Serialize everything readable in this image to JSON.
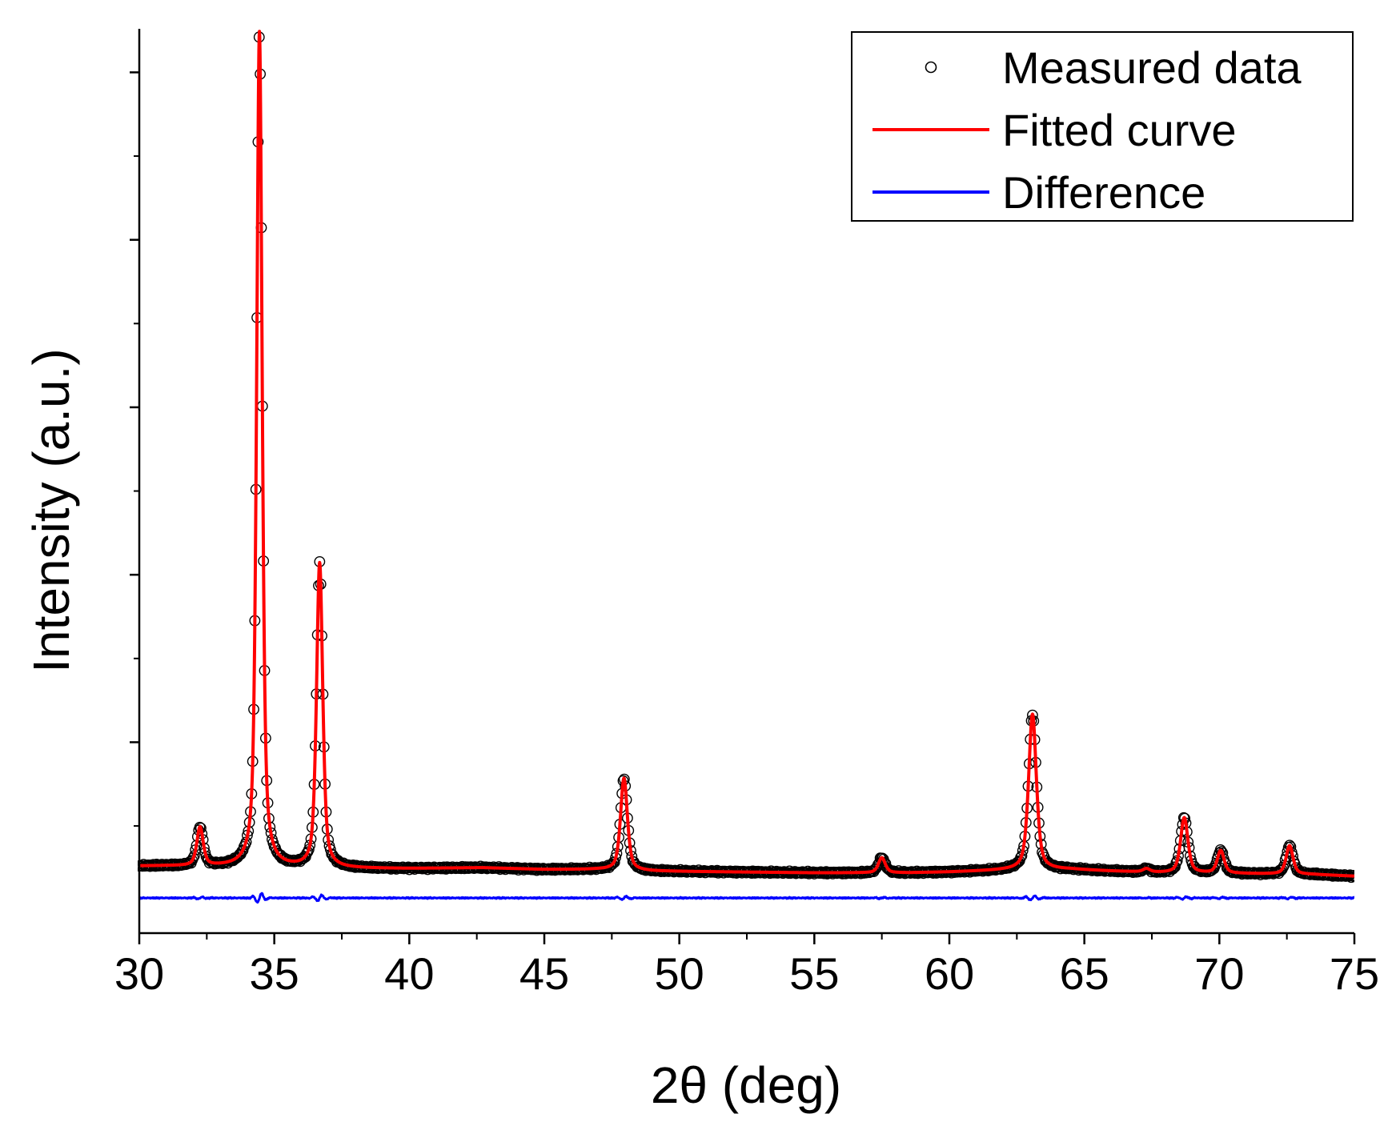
{
  "chart_data": {
    "type": "line",
    "title": "",
    "xlabel": "2θ (deg)",
    "ylabel": "Intensity (a.u.)",
    "xlim": [
      30,
      75
    ],
    "ylim": [
      -0.08,
      1.0
    ],
    "xticks": [
      30,
      35,
      40,
      45,
      50,
      55,
      60,
      65,
      70,
      75
    ],
    "x_tick_labels": [
      "30",
      "35",
      "40",
      "45",
      "50",
      "55",
      "60",
      "65",
      "70",
      "75"
    ],
    "y_tick_labels_shown": false,
    "legend_position": "top-right",
    "background_points": [
      [
        30.0,
        0.0
      ],
      [
        31.0,
        0.0
      ],
      [
        33.0,
        -0.001
      ],
      [
        36.0,
        -0.003
      ],
      [
        38.0,
        -0.003
      ],
      [
        40.0,
        -0.003
      ],
      [
        42.7,
        -0.002
      ],
      [
        45.0,
        -0.004
      ],
      [
        47.0,
        -0.004
      ],
      [
        49.0,
        -0.006
      ],
      [
        52.0,
        -0.007
      ],
      [
        55.0,
        -0.008
      ],
      [
        58.5,
        -0.008
      ],
      [
        60.0,
        -0.007
      ],
      [
        62.0,
        -0.005
      ],
      [
        64.5,
        -0.004
      ],
      [
        66.0,
        -0.006
      ],
      [
        68.0,
        -0.008
      ],
      [
        71.0,
        -0.009
      ],
      [
        73.5,
        -0.01
      ],
      [
        75.0,
        -0.012
      ]
    ],
    "peaks": [
      {
        "center": 32.25,
        "height": 0.046,
        "fwhm": 0.28
      },
      {
        "center": 34.45,
        "height": 0.998,
        "fwhm": 0.24
      },
      {
        "center": 36.68,
        "height": 0.364,
        "fwhm": 0.27
      },
      {
        "center": 47.95,
        "height": 0.11,
        "fwhm": 0.3
      },
      {
        "center": 57.5,
        "height": 0.018,
        "fwhm": 0.3
      },
      {
        "center": 63.08,
        "height": 0.186,
        "fwhm": 0.34
      },
      {
        "center": 67.3,
        "height": 0.004,
        "fwhm": 0.3
      },
      {
        "center": 68.7,
        "height": 0.066,
        "fwhm": 0.32
      },
      {
        "center": 70.05,
        "height": 0.027,
        "fwhm": 0.3
      },
      {
        "center": 72.6,
        "height": 0.034,
        "fwhm": 0.3
      }
    ],
    "difference_offset": -0.038,
    "series": [
      {
        "name": "Measured data",
        "style": "open-circle-markers",
        "color": "#000000"
      },
      {
        "name": "Fitted curve",
        "style": "line",
        "color": "#ff0000"
      },
      {
        "name": "Difference",
        "style": "line",
        "color": "#0000ff"
      }
    ]
  }
}
